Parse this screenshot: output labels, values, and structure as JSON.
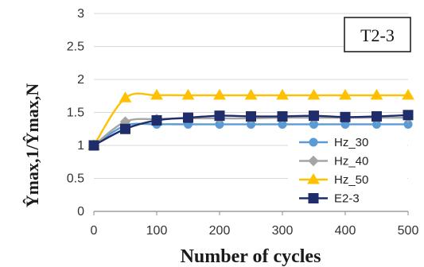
{
  "chart_data": {
    "type": "line",
    "tag": "T2-3",
    "xlabel": "Number of cycles",
    "ylabel": "Ŷmax,1/Ŷmax,N",
    "xlim": [
      0,
      500
    ],
    "ylim": [
      0,
      3
    ],
    "xticks": [
      0,
      100,
      200,
      300,
      400,
      500
    ],
    "yticks": [
      0,
      0.5,
      1,
      1.5,
      2,
      2.5,
      3
    ],
    "ytick_labels": [
      "0",
      "0.5",
      "1",
      "1.5",
      "2",
      "2.5",
      "3"
    ],
    "grid": "horizontal",
    "legend_position": "right",
    "series": [
      {
        "name": "Hz_30",
        "color": "#5b9bd5",
        "marker": "circle",
        "x": [
          0,
          50,
          100,
          150,
          200,
          250,
          300,
          350,
          400,
          450,
          500
        ],
        "values": [
          1.0,
          1.3,
          1.32,
          1.32,
          1.32,
          1.32,
          1.32,
          1.32,
          1.32,
          1.32,
          1.32
        ]
      },
      {
        "name": "Hz_40",
        "color": "#a5a5a5",
        "marker": "diamond",
        "x": [
          0,
          50,
          100,
          150,
          200,
          250,
          300,
          350,
          400,
          450,
          500
        ],
        "values": [
          1.0,
          1.36,
          1.4,
          1.41,
          1.41,
          1.41,
          1.42,
          1.42,
          1.42,
          1.42,
          1.42
        ]
      },
      {
        "name": "Hz_50",
        "color": "#ffc000",
        "marker": "triangle",
        "x": [
          0,
          50,
          100,
          150,
          200,
          250,
          300,
          350,
          400,
          450,
          500
        ],
        "values": [
          1.0,
          1.72,
          1.76,
          1.76,
          1.76,
          1.76,
          1.76,
          1.76,
          1.76,
          1.76,
          1.76
        ]
      },
      {
        "name": "E2-3",
        "color": "#1f2d6b",
        "marker": "square",
        "x": [
          0,
          50,
          100,
          150,
          200,
          250,
          300,
          350,
          400,
          450,
          500
        ],
        "values": [
          1.0,
          1.25,
          1.38,
          1.42,
          1.45,
          1.44,
          1.44,
          1.45,
          1.43,
          1.44,
          1.46
        ]
      }
    ]
  }
}
